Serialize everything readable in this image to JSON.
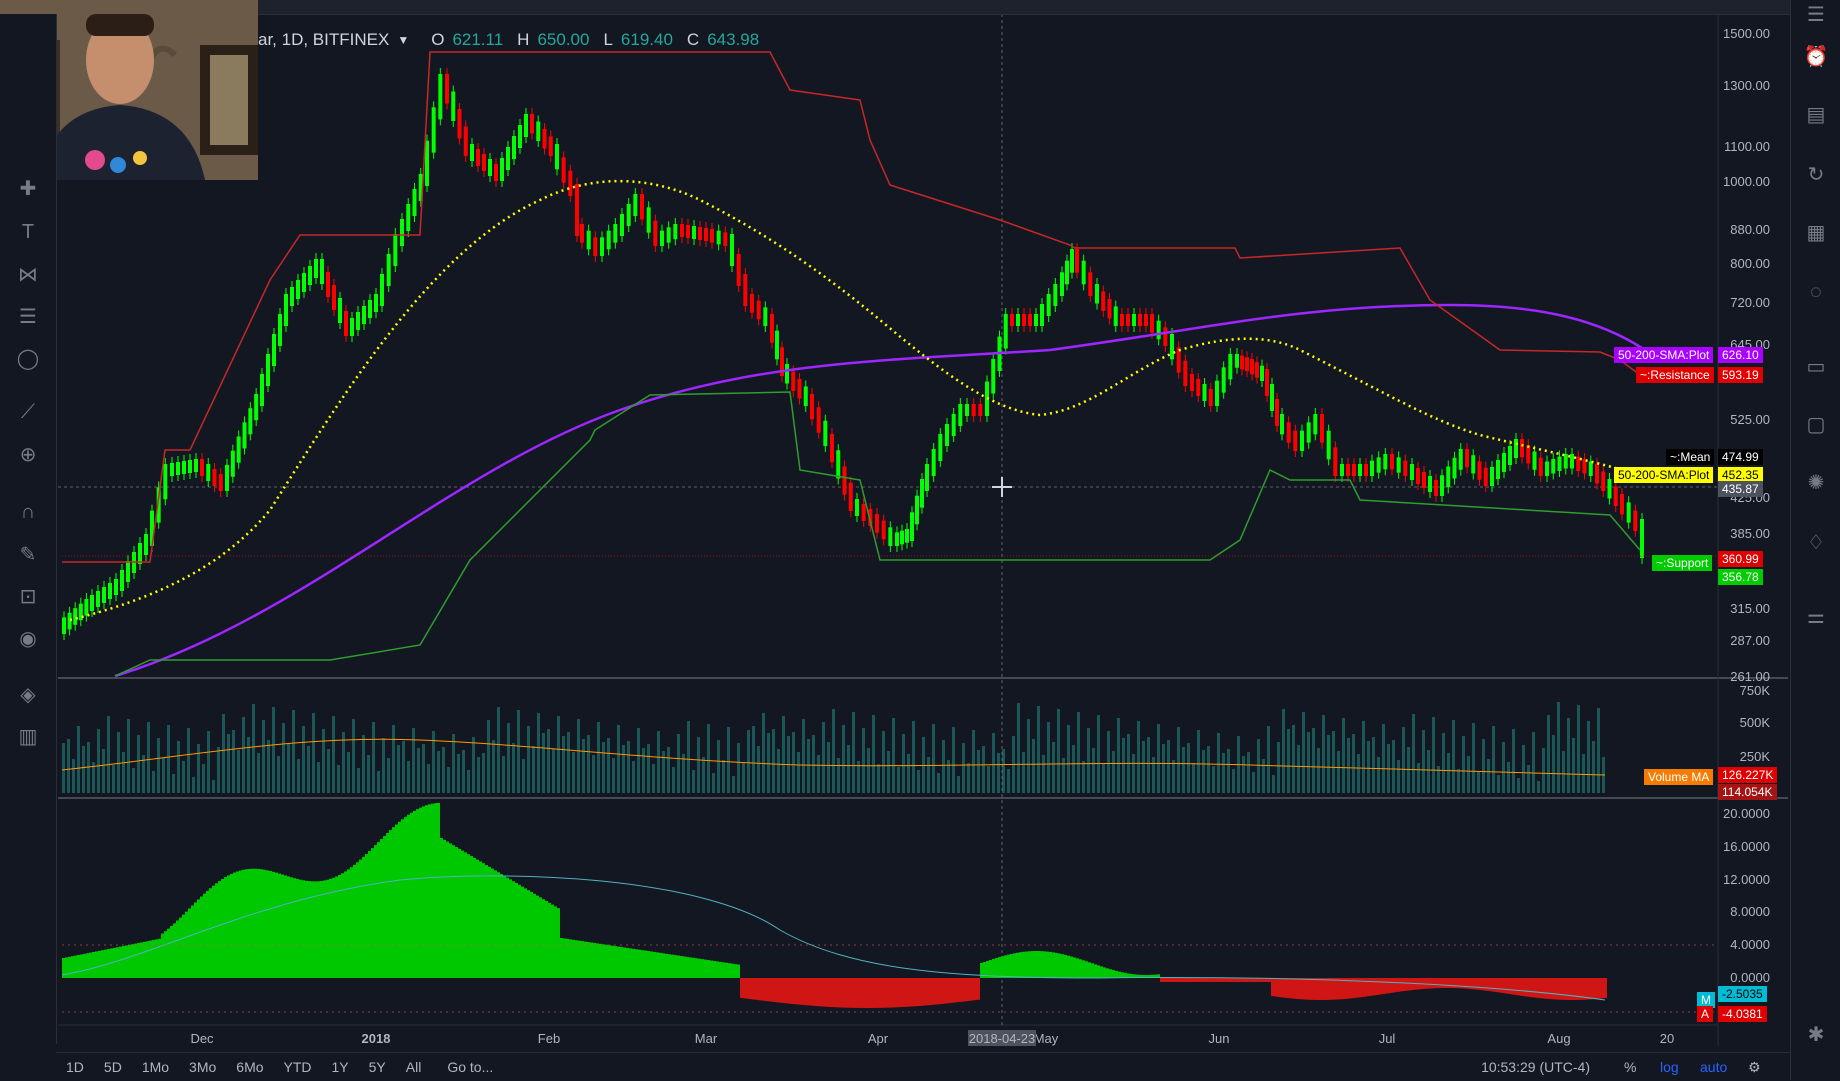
{
  "legend": {
    "symbol": "ar, 1D, BITFINEX",
    "open_key": "O",
    "open": "621.11",
    "high_key": "H",
    "high": "650.00",
    "low_key": "L",
    "low": "619.40",
    "close_key": "C",
    "close": "643.98"
  },
  "price_axis": [
    "1500.00",
    "1300.00",
    "1100.00",
    "1000.00",
    "880.00",
    "800.00",
    "720.00",
    "645.00",
    "525.00",
    "425.00",
    "385.00",
    "315.00",
    "287.00",
    "261.00"
  ],
  "volume_axis": [
    "750K",
    "500K",
    "250K"
  ],
  "osc_axis": [
    "20.0000",
    "16.0000",
    "12.0000",
    "8.0000",
    "4.0000",
    "0.0000"
  ],
  "time_axis": [
    "Dec",
    "2018",
    "Feb",
    "Mar",
    "Apr",
    "May",
    "Jun",
    "Jul",
    "Aug",
    "20"
  ],
  "crosshair_date": "2018-04-23",
  "price_badges": [
    {
      "label": "50-200-SMA:Plot",
      "value": "626.10",
      "color": "#aa00ff"
    },
    {
      "label": "~:Resistance",
      "value": "593.19",
      "color": "#ff0000"
    },
    {
      "label": "~:Mean",
      "value": "474.99",
      "color": "#000000"
    },
    {
      "label": "50-200-SMA:Plot",
      "value": "452.35",
      "color": "#ffff00"
    },
    {
      "label": "",
      "value": "435.87",
      "color": "#4c525e"
    },
    {
      "label": "",
      "value": "360.99",
      "color": "#ff0000"
    },
    {
      "label": "~:Support",
      "value": "356.78",
      "color": "#00cc00"
    }
  ],
  "volume_badges": {
    "label": "Volume MA",
    "ma_value": "126.227K",
    "vol_value": "114.054K"
  },
  "osc_badges": {
    "m_label": "M",
    "m_value": "-2.5035",
    "a_label": "A",
    "a_value": "-4.0381"
  },
  "bottom": {
    "ranges": [
      "1D",
      "5D",
      "1Mo",
      "3Mo",
      "6Mo",
      "YTD",
      "1Y",
      "5Y",
      "All"
    ],
    "goto": "Go to...",
    "time": "10:53:29 (UTC-4)",
    "percent": "%",
    "log": "log",
    "auto": "auto"
  },
  "colors": {
    "up": "#00ff00",
    "down": "#ff0000",
    "sma200": "#9c27ff",
    "sma50": "#ffff00",
    "resistance": "#c62828",
    "support": "#2e9d2e"
  },
  "icons": {
    "left_toolbar": [
      "cross-icon",
      "text-icon",
      "pattern-icon",
      "fib-icon",
      "bubble-icon",
      "ruler-icon",
      "zoom-icon",
      "magnet-icon",
      "pencil-lock-icon",
      "lock-icon",
      "eye-icon",
      "layers-icon",
      "trash-icon"
    ],
    "right_toolbar": [
      "watchlist-icon",
      "alarm-clock-icon",
      "calendar-list-icon",
      "history-icon",
      "calculator-icon",
      "lightbulb-icon",
      "chat-icon",
      "messages-icon",
      "ideas-icon",
      "bell-icon",
      "settings-sliders-icon"
    ]
  }
}
